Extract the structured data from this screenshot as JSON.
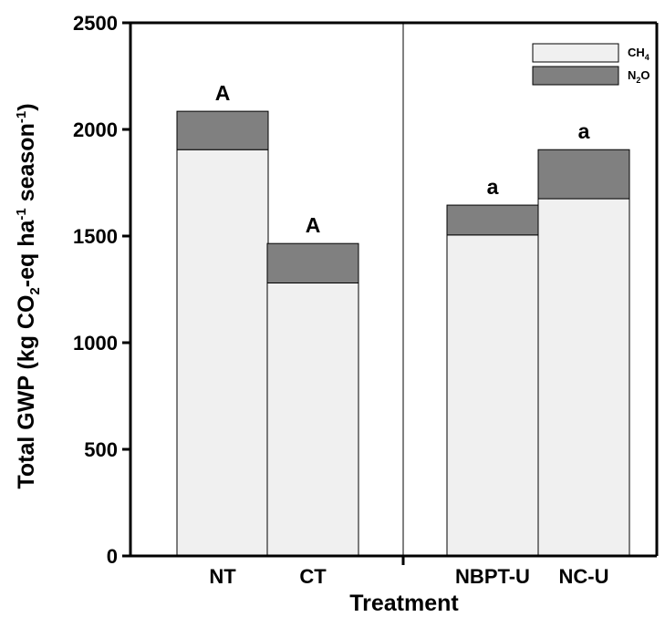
{
  "chart_data": {
    "type": "bar",
    "stacked": true,
    "categories": [
      "NT",
      "CT",
      "NBPT-U",
      "NC-U"
    ],
    "groups": [
      {
        "categories": [
          "NT",
          "CT"
        ]
      },
      {
        "categories": [
          "NBPT-U",
          "NC-U"
        ]
      }
    ],
    "series": [
      {
        "name": "CH4",
        "name_main": "CH",
        "name_sub": "4",
        "color": "#f0f0f0",
        "values": [
          1905,
          1280,
          1505,
          1675
        ]
      },
      {
        "name": "N2O",
        "name_main": "N",
        "name_sub": "2",
        "name_tail": "O",
        "color": "#808080",
        "values": [
          180,
          185,
          140,
          230
        ]
      }
    ],
    "significance_labels": [
      "A",
      "A",
      "a",
      "a"
    ],
    "xlabel": "Treatment",
    "ylabel": {
      "p1": "Total GWP (kg CO",
      "sub": "2",
      "p2": "-eq ha",
      "sup1": "-1",
      "p3": " season",
      "sup2": "-1",
      "p4": ")"
    },
    "ylim": [
      0,
      2500
    ],
    "yticks": [
      0,
      500,
      1000,
      1500,
      2000,
      2500
    ],
    "grid": false,
    "legend_position": "top-right",
    "group_divider": true
  }
}
